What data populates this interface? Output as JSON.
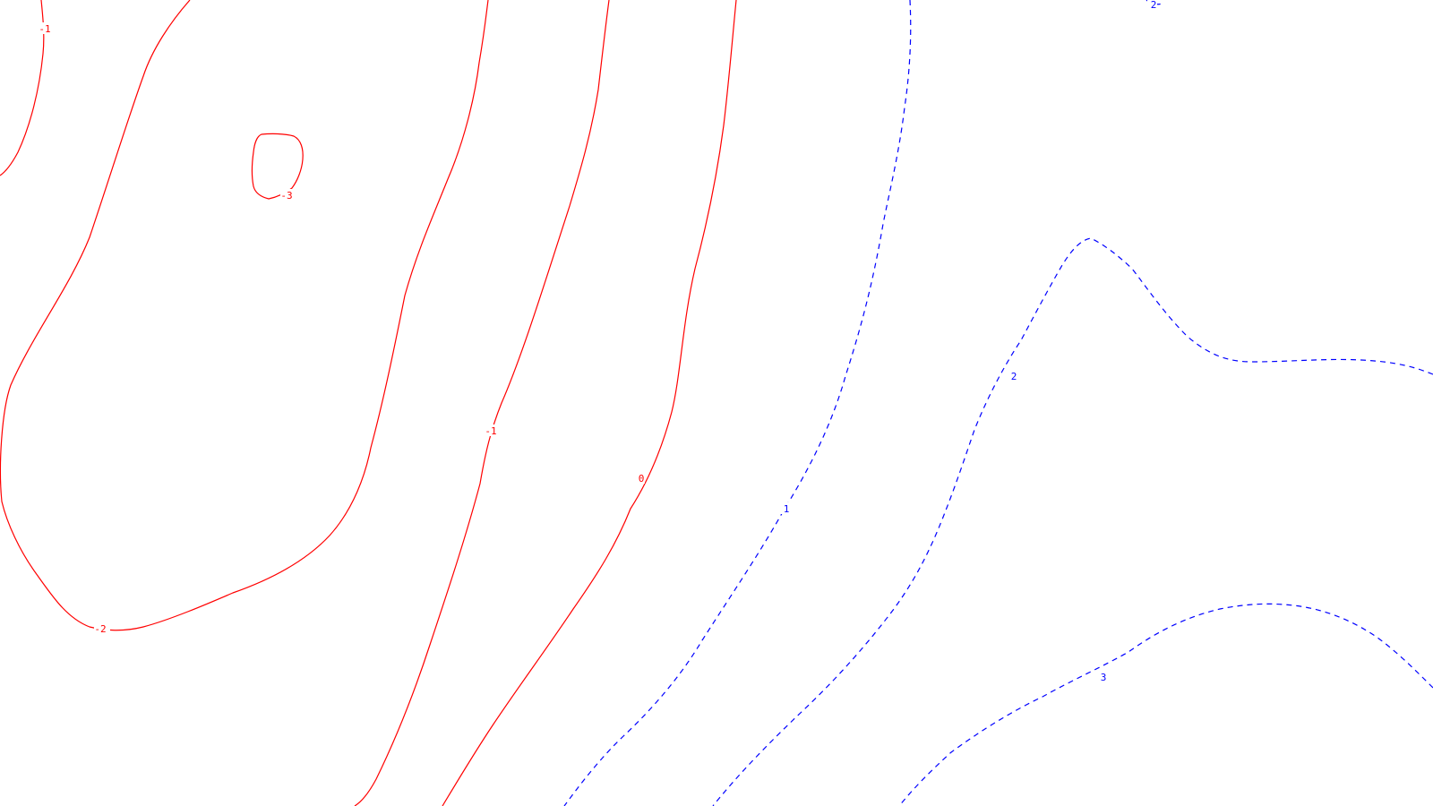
{
  "chart_data": {
    "type": "contour",
    "title": "",
    "xlabel": "",
    "ylabel": "",
    "grid": false,
    "legend": "none",
    "colors": {
      "negative": "#ff0000",
      "positive": "#0000ff",
      "background": "#ffffff"
    },
    "contours": [
      {
        "level": -3,
        "label": "-3",
        "style": "solid",
        "color": "#ff0000"
      },
      {
        "level": -2,
        "label": "-2",
        "style": "solid",
        "color": "#ff0000"
      },
      {
        "level": -1,
        "label": "-1",
        "style": "solid",
        "color": "#ff0000"
      },
      {
        "level": -1,
        "label": "-1",
        "style": "solid",
        "color": "#ff0000"
      },
      {
        "level": 0,
        "label": "0",
        "style": "solid",
        "color": "#ff0000"
      },
      {
        "level": 1,
        "label": "1",
        "style": "dashed",
        "color": "#0000ff"
      },
      {
        "level": 2,
        "label": "2",
        "style": "dashed",
        "color": "#0000ff"
      },
      {
        "level": 2,
        "label": "2",
        "style": "dashed",
        "color": "#0000ff"
      },
      {
        "level": 3,
        "label": "3",
        "style": "dashed",
        "color": "#0000ff"
      }
    ]
  }
}
